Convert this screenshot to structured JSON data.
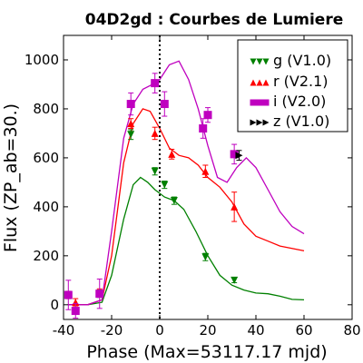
{
  "chart_data": {
    "type": "scatter",
    "title": "04D2gd : Courbes de Lumiere",
    "xlabel": "Phase (Max=53117.17 mjd)",
    "ylabel": "Flux (ZP_ab=30.)",
    "xlim": [
      -40,
      80
    ],
    "ylim": [
      -60,
      1100
    ],
    "xticks": [
      -40,
      -20,
      0,
      20,
      40,
      60,
      80
    ],
    "yticks": [
      0,
      200,
      400,
      600,
      800,
      1000
    ],
    "max_phase_marker": 0,
    "grid": false,
    "legend_position": "top-right",
    "series": [
      {
        "name": "g (V1.0)",
        "color": "#008000",
        "marker": "triangle-down",
        "points": [
          {
            "x": -38,
            "y": 40,
            "err": 15
          },
          {
            "x": -35,
            "y": -25,
            "err": 10
          },
          {
            "x": -25,
            "y": 45,
            "err": 15
          },
          {
            "x": -12,
            "y": 695,
            "err": 20
          },
          {
            "x": -2,
            "y": 545,
            "err": 15
          },
          {
            "x": 2,
            "y": 490,
            "err": 15
          },
          {
            "x": 6,
            "y": 425,
            "err": 15
          },
          {
            "x": 19,
            "y": 195,
            "err": 15
          },
          {
            "x": 31,
            "y": 100,
            "err": 10
          }
        ],
        "curve": [
          [
            -38,
            0
          ],
          [
            -30,
            0
          ],
          [
            -24,
            10
          ],
          [
            -20,
            120
          ],
          [
            -15,
            350
          ],
          [
            -11,
            490
          ],
          [
            -8,
            520
          ],
          [
            -5,
            500
          ],
          [
            -2,
            470
          ],
          [
            2,
            440
          ],
          [
            6,
            425
          ],
          [
            10,
            390
          ],
          [
            15,
            300
          ],
          [
            20,
            200
          ],
          [
            25,
            120
          ],
          [
            30,
            80
          ],
          [
            35,
            60
          ],
          [
            40,
            48
          ],
          [
            45,
            45
          ],
          [
            50,
            35
          ],
          [
            55,
            22
          ],
          [
            60,
            20
          ]
        ]
      },
      {
        "name": "r (V2.1)",
        "color": "#ff0000",
        "marker": "triangle-up",
        "points": [
          {
            "x": -38,
            "y": 40,
            "err": 15
          },
          {
            "x": -35,
            "y": 10,
            "err": 15
          },
          {
            "x": -25,
            "y": 50,
            "err": 15
          },
          {
            "x": -12,
            "y": 740,
            "err": 20
          },
          {
            "x": -2,
            "y": 700,
            "err": 25
          },
          {
            "x": 5,
            "y": 615,
            "err": 20
          },
          {
            "x": 19,
            "y": 545,
            "err": 25
          },
          {
            "x": 31,
            "y": 400,
            "err": 60
          }
        ],
        "curve": [
          [
            -38,
            0
          ],
          [
            -30,
            0
          ],
          [
            -24,
            20
          ],
          [
            -20,
            200
          ],
          [
            -15,
            580
          ],
          [
            -11,
            740
          ],
          [
            -7,
            800
          ],
          [
            -4,
            790
          ],
          [
            0,
            720
          ],
          [
            4,
            640
          ],
          [
            8,
            610
          ],
          [
            12,
            600
          ],
          [
            16,
            570
          ],
          [
            20,
            520
          ],
          [
            25,
            480
          ],
          [
            30,
            420
          ],
          [
            35,
            330
          ],
          [
            40,
            280
          ],
          [
            45,
            260
          ],
          [
            50,
            240
          ],
          [
            55,
            230
          ],
          [
            60,
            220
          ]
        ]
      },
      {
        "name": "i (V2.0)",
        "color": "#bf00bf",
        "marker": "square",
        "points": [
          {
            "x": -38,
            "y": 40,
            "err": 60
          },
          {
            "x": -35,
            "y": -25,
            "err": 30
          },
          {
            "x": -25,
            "y": 45,
            "err": 60
          },
          {
            "x": -12,
            "y": 820,
            "err": 45
          },
          {
            "x": -2,
            "y": 905,
            "err": 40
          },
          {
            "x": 2,
            "y": 820,
            "err": 50
          },
          {
            "x": 18,
            "y": 720,
            "err": 40
          },
          {
            "x": 20,
            "y": 775,
            "err": 30
          },
          {
            "x": 31,
            "y": 615,
            "err": 40
          }
        ],
        "curve": [
          [
            -38,
            0
          ],
          [
            -30,
            0
          ],
          [
            -24,
            20
          ],
          [
            -20,
            300
          ],
          [
            -15,
            680
          ],
          [
            -11,
            820
          ],
          [
            -7,
            880
          ],
          [
            -3,
            900
          ],
          [
            0,
            920
          ],
          [
            4,
            980
          ],
          [
            8,
            995
          ],
          [
            12,
            920
          ],
          [
            16,
            800
          ],
          [
            20,
            650
          ],
          [
            24,
            520
          ],
          [
            28,
            500
          ],
          [
            32,
            560
          ],
          [
            36,
            600
          ],
          [
            40,
            560
          ],
          [
            45,
            470
          ],
          [
            50,
            380
          ],
          [
            55,
            320
          ],
          [
            60,
            290
          ]
        ]
      },
      {
        "name": "z (V1.0)",
        "color": "#000000",
        "marker": "triangle-right",
        "points": [
          {
            "x": 33,
            "y": 610,
            "err": 20
          }
        ],
        "curve": []
      }
    ]
  }
}
